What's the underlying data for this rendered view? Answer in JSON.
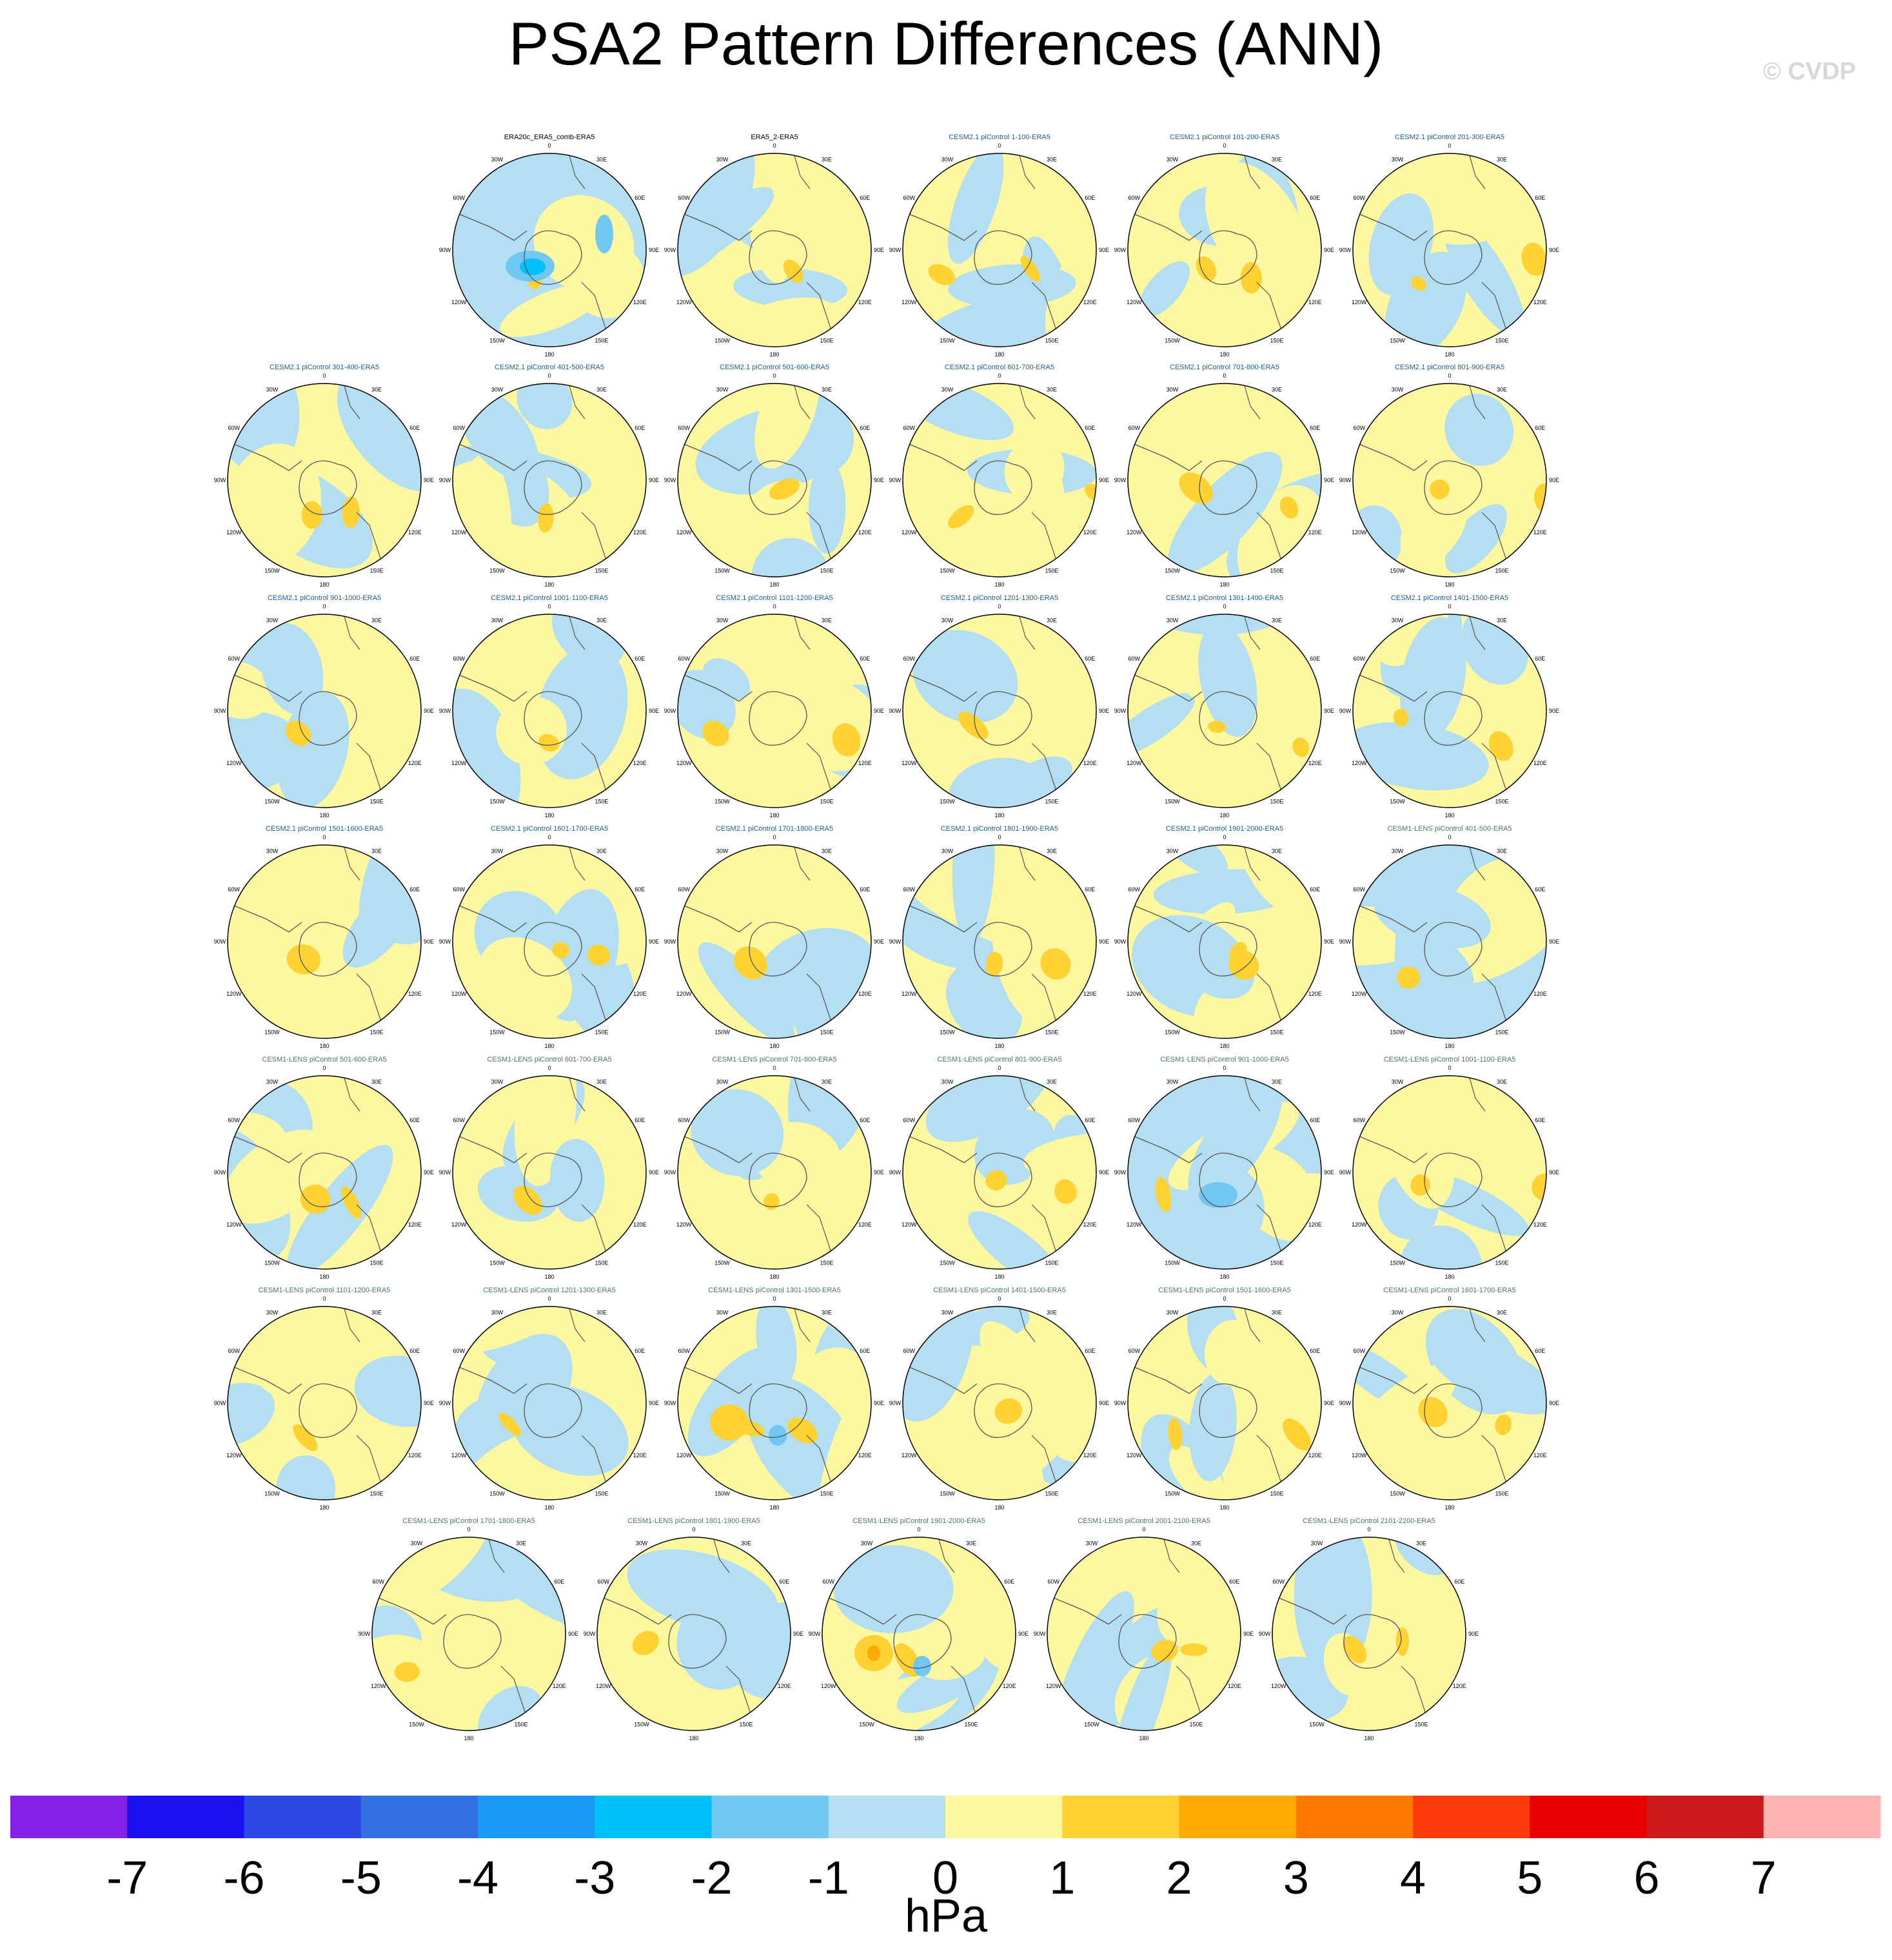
{
  "title": "PSA2 Pattern Differences (ANN)",
  "copyright": "© CVDP",
  "units": "hPa",
  "colors": {
    "levels": [
      "#8420e8",
      "#1a10f0",
      "#2a48e6",
      "#3070e0",
      "#1a98f6",
      "#00c0f8",
      "#70c8f2",
      "#b4dff2",
      "#fdf7a0",
      "#ffd233",
      "#ffaa00",
      "#ff7800",
      "#ff3a0a",
      "#e80000",
      "#cc1a1a",
      "#ffb3b3"
    ],
    "cesm2_label": "#1f5d8f",
    "cesm1_label": "#4a7a5a",
    "obs_label": "#000000"
  },
  "map_longitude_labels": [
    "0",
    "30E",
    "60E",
    "90E",
    "120E",
    "150E",
    "180",
    "150W",
    "120W",
    "90W",
    "60W",
    "30W"
  ],
  "chart_data": {
    "type": "heatmap",
    "projection": "south-polar-stereographic",
    "colorbar": {
      "ticks": [
        "-7",
        "-6",
        "-5",
        "-4",
        "-3",
        "-2",
        "-1",
        "0",
        "1",
        "2",
        "3",
        "4",
        "5",
        "6",
        "7"
      ],
      "range": [
        -8,
        8
      ],
      "interval": 1,
      "units": "hPa"
    },
    "panels": [
      {
        "label": "ERA20c_ERA5_comb-ERA5",
        "group": "obs"
      },
      {
        "label": "ERA5_2-ERA5",
        "group": "obs"
      },
      {
        "label": "CESM2.1 piControl 1-100-ERA5",
        "group": "cesm2"
      },
      {
        "label": "CESM2.1 piControl 101-200-ERA5",
        "group": "cesm2"
      },
      {
        "label": "CESM2.1 piControl 201-300-ERA5",
        "group": "cesm2"
      },
      {
        "label": "CESM2.1 piControl 301-400-ERA5",
        "group": "cesm2"
      },
      {
        "label": "CESM2.1 piControl 401-500-ERA5",
        "group": "cesm2"
      },
      {
        "label": "CESM2.1 piControl 501-600-ERA5",
        "group": "cesm2"
      },
      {
        "label": "CESM2.1 piControl 601-700-ERA5",
        "group": "cesm2"
      },
      {
        "label": "CESM2.1 piControl 701-800-ERA5",
        "group": "cesm2"
      },
      {
        "label": "CESM2.1 piControl 801-900-ERA5",
        "group": "cesm2"
      },
      {
        "label": "CESM2.1 piControl 901-1000-ERA5",
        "group": "cesm2"
      },
      {
        "label": "CESM2.1 piControl 1001-1100-ERA5",
        "group": "cesm2"
      },
      {
        "label": "CESM2.1 piControl 1101-1200-ERA5",
        "group": "cesm2"
      },
      {
        "label": "CESM2.1 piControl 1201-1300-ERA5",
        "group": "cesm2"
      },
      {
        "label": "CESM2.1 piControl 1301-1400-ERA5",
        "group": "cesm2"
      },
      {
        "label": "CESM2.1 piControl 1401-1500-ERA5",
        "group": "cesm2"
      },
      {
        "label": "CESM2.1 piControl 1501-1600-ERA5",
        "group": "cesm2"
      },
      {
        "label": "CESM2.1 piControl 1601-1700-ERA5",
        "group": "cesm2"
      },
      {
        "label": "CESM2.1 piControl 1701-1800-ERA5",
        "group": "cesm2"
      },
      {
        "label": "CESM2.1 piControl 1801-1900-ERA5",
        "group": "cesm2"
      },
      {
        "label": "CESM2.1 piControl 1901-2000-ERA5",
        "group": "cesm2"
      },
      {
        "label": "CESM1-LENS piControl 401-500-ERA5",
        "group": "cesm1"
      },
      {
        "label": "CESM1-LENS piControl 501-600-ERA5",
        "group": "cesm1"
      },
      {
        "label": "CESM1-LENS piControl 601-700-ERA5",
        "group": "cesm1"
      },
      {
        "label": "CESM1-LENS piControl 701-800-ERA5",
        "group": "cesm1"
      },
      {
        "label": "CESM1-LENS piControl 801-900-ERA5",
        "group": "cesm1"
      },
      {
        "label": "CESM1-LENS piControl 901-1000-ERA5",
        "group": "cesm1"
      },
      {
        "label": "CESM1-LENS piControl 1001-1100-ERA5",
        "group": "cesm1"
      },
      {
        "label": "CESM1-LENS piControl 1101-1200-ERA5",
        "group": "cesm1"
      },
      {
        "label": "CESM1-LENS piControl 1201-1300-ERA5",
        "group": "cesm1"
      },
      {
        "label": "CESM1-LENS piControl 1301-1500-ERA5",
        "group": "cesm1"
      },
      {
        "label": "CESM1-LENS piControl 1401-1500-ERA5",
        "group": "cesm1"
      },
      {
        "label": "CESM1-LENS piControl 1501-1600-ERA5",
        "group": "cesm1"
      },
      {
        "label": "CESM1-LENS piControl 1601-1700-ERA5",
        "group": "cesm1"
      },
      {
        "label": "CESM1-LENS piControl 1701-1800-ERA5",
        "group": "cesm1"
      },
      {
        "label": "CESM1-LENS piControl 1801-1900-ERA5",
        "group": "cesm1"
      },
      {
        "label": "CESM1-LENS piControl 1901-2000-ERA5",
        "group": "cesm1"
      },
      {
        "label": "CESM1-LENS piControl 2001-2100-ERA5",
        "group": "cesm1"
      },
      {
        "label": "CESM1-LENS piControl 2101-2200-ERA5",
        "group": "cesm1"
      }
    ]
  }
}
